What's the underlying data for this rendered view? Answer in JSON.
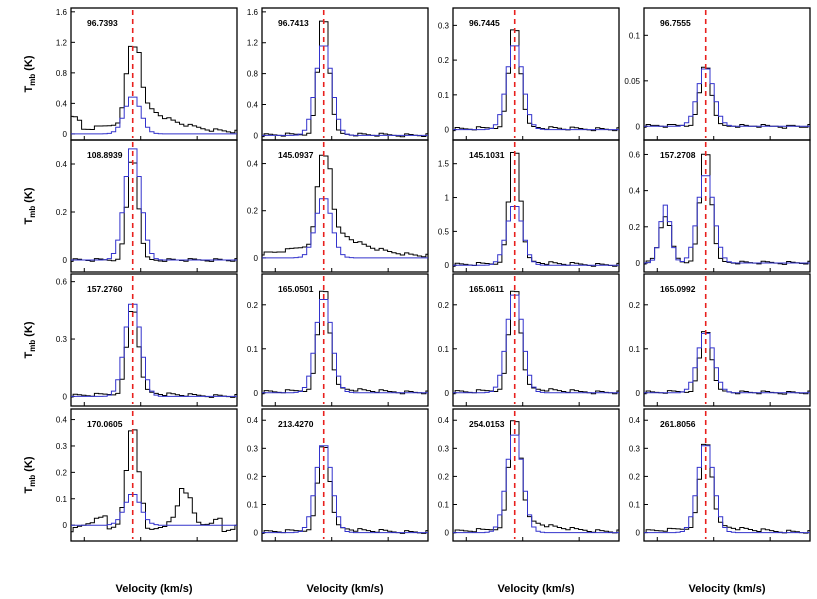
{
  "figure": {
    "ylabel": "T",
    "ylabel_sub": "mb",
    "ylabel_unit": " (K)",
    "xlabel": "Velocity (km/s)"
  },
  "colors": {
    "observed": "#000000",
    "model": "#3333cc",
    "marker": "#e8201e",
    "frame": "#000000"
  },
  "chart_data": [
    {
      "type": "line",
      "label": "96.7393",
      "ylim": [
        -0.08,
        1.65
      ],
      "yticks": [
        "0",
        "0.4",
        "0.8",
        "1.2",
        "1.6"
      ],
      "ytick_values": [
        0,
        0.4,
        0.8,
        1.2,
        1.6
      ],
      "peak_obs": 1.24,
      "peak_model": 0.5,
      "wing_obs": 0.5,
      "wing_model": 0.45,
      "skew": 0.5,
      "series": [
        {
          "name": "",
          "values": []
        },
        {
          "name": "",
          "values": []
        }
      ]
    },
    {
      "type": "line",
      "label": "96.7413",
      "ylim": [
        -0.06,
        1.65
      ],
      "yticks": [
        "0",
        "0.4",
        "0.8",
        "1.2",
        "1.6"
      ],
      "ytick_values": [
        0,
        0.4,
        0.8,
        1.2,
        1.6
      ],
      "peak_obs": 1.6,
      "peak_model": 1.2,
      "wing_obs": 0.05,
      "wing_model": 0,
      "skew": 0.3,
      "series": [
        {
          "name": "",
          "values": []
        },
        {
          "name": "",
          "values": []
        }
      ]
    },
    {
      "type": "line",
      "label": "96.7445",
      "ylim": [
        -0.03,
        0.35
      ],
      "yticks": [
        "0",
        "0.1",
        "0.2",
        "0.3"
      ],
      "ytick_values": [
        0,
        0.1,
        0.2,
        0.3
      ],
      "peak_obs": 0.31,
      "peak_model": 0.25,
      "wing_obs": 0.02,
      "wing_model": 0,
      "skew": 0.3,
      "series": [
        {
          "name": "",
          "values": []
        },
        {
          "name": "",
          "values": []
        }
      ]
    },
    {
      "type": "line",
      "label": "96.7555",
      "ylim": [
        -0.015,
        0.13
      ],
      "yticks": [
        "0",
        "0.05",
        "0.1"
      ],
      "ytick_values": [
        0,
        0.05,
        0.1
      ],
      "peak_obs": 0.07,
      "peak_model": 0.065,
      "wing_obs": 0.005,
      "wing_model": 0,
      "skew": 0.1,
      "series": [
        {
          "name": "",
          "values": []
        },
        {
          "name": "",
          "values": []
        }
      ]
    },
    {
      "type": "line",
      "label": "108.8939",
      "ylim": [
        -0.05,
        0.5
      ],
      "yticks": [
        "0",
        "0.2",
        "0.4"
      ],
      "ytick_values": [
        0,
        0.2,
        0.4
      ],
      "peak_obs": 0.44,
      "peak_model": 0.48,
      "wing_obs": 0.0,
      "wing_model": 0,
      "skew": 0.0,
      "series": [
        {
          "name": "",
          "values": []
        },
        {
          "name": "",
          "values": []
        }
      ]
    },
    {
      "type": "line",
      "label": "145.0937",
      "ylim": [
        -0.06,
        0.5
      ],
      "yticks": [
        "0",
        "0.2",
        "0.4"
      ],
      "ytick_values": [
        0,
        0.2,
        0.4
      ],
      "peak_obs": 0.47,
      "peak_model": 0.26,
      "wing_obs": 0.2,
      "wing_model": 0,
      "skew": 0.4,
      "series": [
        {
          "name": "",
          "values": []
        },
        {
          "name": "",
          "values": []
        }
      ]
    },
    {
      "type": "line",
      "label": "145.1031",
      "ylim": [
        -0.1,
        1.85
      ],
      "yticks": [
        "0",
        "0.5",
        "1",
        "1.5"
      ],
      "ytick_values": [
        0,
        0.5,
        1,
        1.5
      ],
      "peak_obs": 1.8,
      "peak_model": 0.9,
      "wing_obs": 0.1,
      "wing_model": 0,
      "skew": 0.4,
      "series": [
        {
          "name": "",
          "values": []
        },
        {
          "name": "",
          "values": []
        }
      ]
    },
    {
      "type": "line",
      "label": "157.2708",
      "ylim": [
        -0.05,
        0.68
      ],
      "yticks": [
        "0",
        "0.2",
        "0.4",
        "0.6"
      ],
      "ytick_values": [
        0,
        0.2,
        0.4,
        0.6
      ],
      "peak_obs": 0.65,
      "peak_model": 0.5,
      "wing_obs": 0.02,
      "wing_model": 0,
      "skew": 0.2,
      "second_peak_obs": 0.26,
      "second_peak_model": 0.32,
      "series": [
        {
          "name": "",
          "values": []
        },
        {
          "name": "",
          "values": []
        }
      ]
    },
    {
      "type": "line",
      "label": "157.2760",
      "ylim": [
        -0.05,
        0.64
      ],
      "yticks": [
        "0",
        "0.3",
        "0.6"
      ],
      "ytick_values": [
        0,
        0.3,
        0.6
      ],
      "peak_obs": 0.48,
      "peak_model": 0.5,
      "wing_obs": 0.05,
      "wing_model": 0,
      "skew": 0.3,
      "series": [
        {
          "name": "",
          "values": []
        },
        {
          "name": "",
          "values": []
        }
      ]
    },
    {
      "type": "line",
      "label": "165.0501",
      "ylim": [
        -0.03,
        0.27
      ],
      "yticks": [
        "0",
        "0.1",
        "0.2"
      ],
      "ytick_values": [
        0,
        0.1,
        0.2
      ],
      "peak_obs": 0.25,
      "peak_model": 0.22,
      "wing_obs": 0.02,
      "wing_model": 0,
      "skew": 0.4,
      "series": [
        {
          "name": "",
          "values": []
        },
        {
          "name": "",
          "values": []
        }
      ]
    },
    {
      "type": "line",
      "label": "165.0611",
      "ylim": [
        -0.03,
        0.27
      ],
      "yticks": [
        "0",
        "0.1",
        "0.2"
      ],
      "ytick_values": [
        0,
        0.1,
        0.2
      ],
      "peak_obs": 0.25,
      "peak_model": 0.23,
      "wing_obs": 0.02,
      "wing_model": 0,
      "skew": 0.4,
      "series": [
        {
          "name": "",
          "values": []
        },
        {
          "name": "",
          "values": []
        }
      ]
    },
    {
      "type": "line",
      "label": "165.0992",
      "ylim": [
        -0.03,
        0.27
      ],
      "yticks": [
        "0",
        "0.1",
        "0.2"
      ],
      "ytick_values": [
        0,
        0.1,
        0.2
      ],
      "peak_obs": 0.15,
      "peak_model": 0.14,
      "wing_obs": 0.01,
      "wing_model": 0,
      "skew": 0.2,
      "series": [
        {
          "name": "",
          "values": []
        },
        {
          "name": "",
          "values": []
        }
      ]
    },
    {
      "type": "line",
      "label": "170.0605",
      "ylim": [
        -0.06,
        0.44
      ],
      "yticks": [
        "0",
        "0.1",
        "0.2",
        "0.3",
        "0.4"
      ],
      "ytick_values": [
        0,
        0.1,
        0.2,
        0.3,
        0.4
      ],
      "peak_obs": 0.38,
      "peak_model": 0.12,
      "wing_obs": 0.05,
      "wing_model": 0,
      "skew": 0.0,
      "second_peak_obs": 0.15,
      "series": [
        {
          "name": "",
          "values": []
        },
        {
          "name": "",
          "values": []
        }
      ]
    },
    {
      "type": "line",
      "label": "213.4270",
      "ylim": [
        -0.03,
        0.44
      ],
      "yticks": [
        "0",
        "0.1",
        "0.2",
        "0.3",
        "0.4"
      ],
      "ytick_values": [
        0,
        0.1,
        0.2,
        0.3,
        0.4
      ],
      "peak_obs": 0.33,
      "peak_model": 0.32,
      "wing_obs": 0.03,
      "wing_model": 0,
      "skew": 0.4,
      "series": [
        {
          "name": "",
          "values": []
        },
        {
          "name": "",
          "values": []
        }
      ]
    },
    {
      "type": "line",
      "label": "254.0153",
      "ylim": [
        -0.03,
        0.44
      ],
      "yticks": [
        "0",
        "0.1",
        "0.2",
        "0.3",
        "0.4"
      ],
      "ytick_values": [
        0,
        0.1,
        0.2,
        0.3,
        0.4
      ],
      "peak_obs": 0.43,
      "peak_model": 0.36,
      "wing_obs": 0.05,
      "wing_model": 0,
      "skew": 0.6,
      "series": [
        {
          "name": "",
          "values": []
        },
        {
          "name": "",
          "values": []
        }
      ]
    },
    {
      "type": "line",
      "label": "261.8056",
      "ylim": [
        -0.03,
        0.44
      ],
      "yticks": [
        "0",
        "0.1",
        "0.2",
        "0.3",
        "0.4"
      ],
      "ytick_values": [
        0,
        0.1,
        0.2,
        0.3,
        0.4
      ],
      "peak_obs": 0.34,
      "peak_model": 0.32,
      "wing_obs": 0.06,
      "wing_model": 0,
      "skew": 0.3,
      "series": [
        {
          "name": "",
          "values": []
        },
        {
          "name": "",
          "values": []
        }
      ]
    }
  ]
}
